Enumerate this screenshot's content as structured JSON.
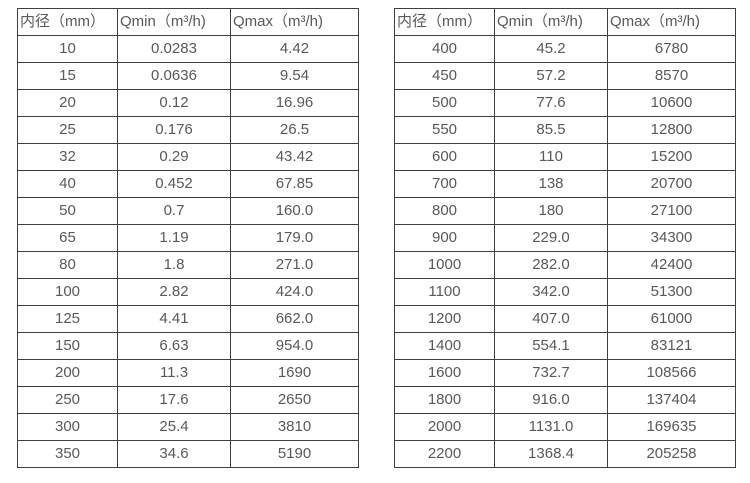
{
  "colors": {
    "border": "#3f3f3f",
    "text": "#595959",
    "background": "#ffffff"
  },
  "tables": [
    {
      "name": "flow-table-small-diameters",
      "headers": [
        "内径（mm）",
        "Qmin（m³/h)",
        "Qmax（m³/h)"
      ],
      "rows": [
        [
          "10",
          "0.0283",
          "4.42"
        ],
        [
          "15",
          "0.0636",
          "9.54"
        ],
        [
          "20",
          "0.12",
          "16.96"
        ],
        [
          "25",
          "0.176",
          "26.5"
        ],
        [
          "32",
          "0.29",
          "43.42"
        ],
        [
          "40",
          "0.452",
          "67.85"
        ],
        [
          "50",
          "0.7",
          "160.0"
        ],
        [
          "65",
          "1.19",
          "179.0"
        ],
        [
          "80",
          "1.8",
          "271.0"
        ],
        [
          "100",
          "2.82",
          "424.0"
        ],
        [
          "125",
          "4.41",
          "662.0"
        ],
        [
          "150",
          "6.63",
          "954.0"
        ],
        [
          "200",
          "11.3",
          "1690"
        ],
        [
          "250",
          "17.6",
          "2650"
        ],
        [
          "300",
          "25.4",
          "3810"
        ],
        [
          "350",
          "34.6",
          "5190"
        ]
      ]
    },
    {
      "name": "flow-table-large-diameters",
      "headers": [
        "内径（mm）",
        "Qmin（m³/h)",
        "Qmax（m³/h)"
      ],
      "rows": [
        [
          "400",
          "45.2",
          "6780"
        ],
        [
          "450",
          "57.2",
          "8570"
        ],
        [
          "500",
          "77.6",
          "10600"
        ],
        [
          "550",
          "85.5",
          "12800"
        ],
        [
          "600",
          "110",
          "15200"
        ],
        [
          "700",
          "138",
          "20700"
        ],
        [
          "800",
          "180",
          "27100"
        ],
        [
          "900",
          "229.0",
          "34300"
        ],
        [
          "1000",
          "282.0",
          "42400"
        ],
        [
          "1100",
          "342.0",
          "51300"
        ],
        [
          "1200",
          "407.0",
          "61000"
        ],
        [
          "1400",
          "554.1",
          "83121"
        ],
        [
          "1600",
          "732.7",
          "108566"
        ],
        [
          "1800",
          "916.0",
          "137404"
        ],
        [
          "2000",
          "1131.0",
          "169635"
        ],
        [
          "2200",
          "1368.4",
          "205258"
        ]
      ]
    }
  ]
}
